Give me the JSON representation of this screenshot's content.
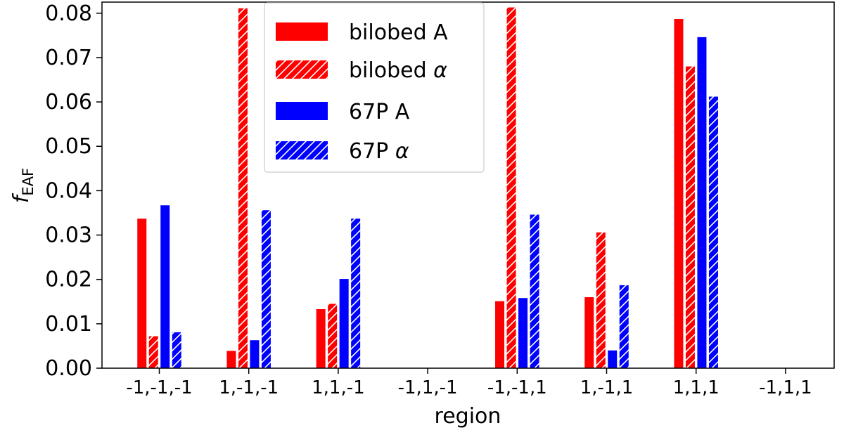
{
  "chart_data": {
    "type": "bar",
    "categories": [
      "-1,-1,-1",
      "1,-1,-1",
      "1,1,-1",
      "-1,1,-1",
      "-1,-1,1",
      "1,-1,1",
      "1,1,1",
      "-1,1,1"
    ],
    "series": [
      {
        "name": "bilobed A",
        "color": "#ff0000",
        "hatch": false,
        "values": [
          0.0337,
          0.0039,
          0.0133,
          0,
          0.0151,
          0.016,
          0.0787,
          0
        ]
      },
      {
        "name": "bilobed α",
        "color": "#ff0000",
        "hatch": true,
        "values": [
          0.0072,
          0.0811,
          0.0145,
          0,
          0.0813,
          0.0306,
          0.068,
          0
        ]
      },
      {
        "name": "67P A",
        "color": "#0000ff",
        "hatch": false,
        "values": [
          0.0367,
          0.0063,
          0.0201,
          0,
          0.0158,
          0.004,
          0.0746,
          0
        ]
      },
      {
        "name": "67P α",
        "color": "#0000ff",
        "hatch": true,
        "values": [
          0.0081,
          0.0356,
          0.0337,
          0,
          0.0346,
          0.0187,
          0.0612,
          0
        ]
      }
    ],
    "xlabel": "region",
    "ylabel_main": "f",
    "ylabel_sub": "EAF",
    "ylim": [
      0,
      0.0825
    ],
    "yticks": [
      "0.00",
      "0.01",
      "0.02",
      "0.03",
      "0.04",
      "0.05",
      "0.06",
      "0.07",
      "0.08"
    ],
    "grid": false,
    "legend_position": "top-center"
  }
}
